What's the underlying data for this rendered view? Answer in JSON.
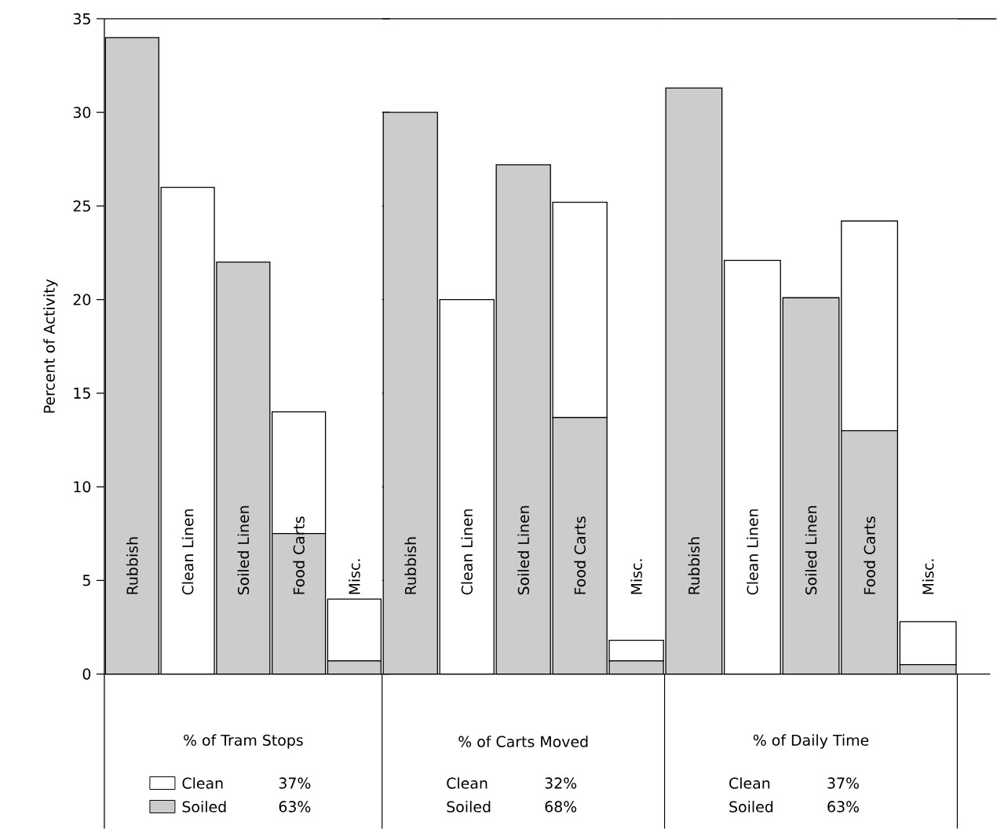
{
  "chart_data": [
    {
      "type": "bar",
      "stacked": true,
      "xlabel": "% of Tram Stops",
      "ylabel": "Percent of Activity",
      "categories": [
        "Rubbish",
        "Clean Linen",
        "Soiled Linen",
        "Food Carts",
        "Misc."
      ],
      "series": [
        {
          "name": "Soiled",
          "color": "#cccccc",
          "values": [
            34,
            0,
            22,
            7.5,
            0.7
          ]
        },
        {
          "name": "Clean",
          "color": "#ffffff",
          "values": [
            0,
            26,
            0,
            6.5,
            3.3
          ]
        }
      ],
      "ylim": [
        0,
        35
      ],
      "yticks": [
        0,
        5,
        10,
        15,
        20,
        25,
        30,
        35
      ],
      "legend": "bottom",
      "annotations": [
        "37%",
        "63%"
      ]
    },
    {
      "type": "bar",
      "stacked": true,
      "xlabel": "% of Carts Moved",
      "tick_labels": "x",
      "categories": [
        "Rubbish",
        "Clean Linen",
        "Soiled Linen",
        "Food Carts",
        "Misc."
      ],
      "series": [
        {
          "color": "#cccccc",
          "values": [
            30,
            0,
            27.2,
            13.7,
            0.7
          ]
        },
        {
          "color": "#ffffff",
          "values": [
            0,
            20,
            0,
            11.5,
            1.1
          ]
        }
      ],
      "ylim": [
        0,
        35
      ],
      "annotations": [
        "Clean",
        "32%",
        "Soiled",
        "68%"
      ]
    },
    {
      "type": "bar",
      "stacked": true,
      "xlabel": "% of Daily Time",
      "tick_labels": "x",
      "categories": [
        "Rubbish",
        "Clean Linen",
        "Soiled Linen",
        "Food Carts",
        "Misc."
      ],
      "series": [
        {
          "color": "#cccccc",
          "values": [
            31.3,
            0,
            20.1,
            13,
            0.5
          ]
        },
        {
          "color": "#ffffff",
          "values": [
            0,
            22.1,
            0,
            11.2,
            2.3
          ]
        }
      ],
      "ylim": [
        0,
        35
      ],
      "annotations": [
        "Clean",
        "37%",
        "Soiled",
        "63%"
      ]
    }
  ]
}
